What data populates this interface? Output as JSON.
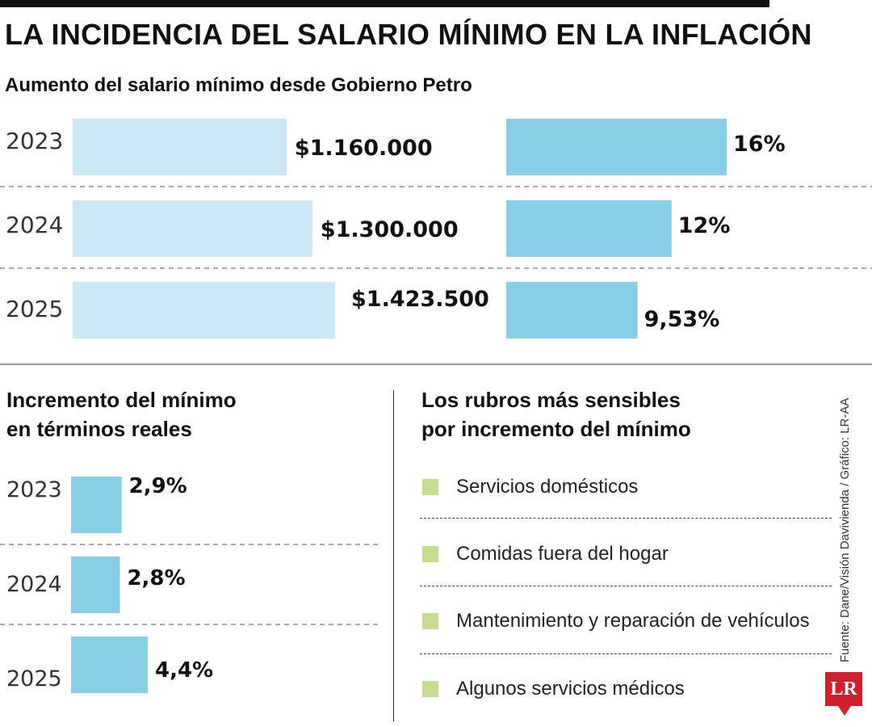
{
  "title": "LA INCIDENCIA DEL SALARIO MÍNIMO EN LA INFLACIÓN",
  "colors": {
    "light_bar": "#cce8f4",
    "bar": "#87cee6",
    "bullet": "#c5dc8c",
    "logo": "#d0202e"
  },
  "chart_data": [
    {
      "type": "bar",
      "title": "Aumento del salario mínimo desde Gobierno Petro",
      "categories": [
        "2023",
        "2024",
        "2025"
      ],
      "series": [
        {
          "values": [
            1160000,
            1300000,
            1423500
          ],
          "labels": [
            "$1.160.000",
            "$1.300.000",
            "$1.423.500"
          ],
          "color": "#cce8f4"
        },
        {
          "values": [
            16,
            12,
            9.53
          ],
          "labels": [
            "16%",
            "12%",
            "9,53%"
          ],
          "color": "#87cee6"
        }
      ],
      "grid": false
    },
    {
      "type": "bar",
      "title_lines": [
        "Incremento del mínimo",
        "en términos reales"
      ],
      "categories": [
        "2023",
        "2024",
        "2025"
      ],
      "values": [
        2.9,
        2.8,
        4.4
      ],
      "labels": [
        "2,9%",
        "2,8%",
        "4,4%"
      ],
      "color": "#87cee6",
      "grid": false
    }
  ],
  "rubros": {
    "title_lines": [
      "Los rubros más sensibles",
      "por incremento del mínimo"
    ],
    "items": [
      " Servicios domésticos",
      "Comidas fuera del hogar",
      "Mantenimiento y reparación de vehículos",
      "Algunos servicios médicos"
    ]
  },
  "source": "Fuente: Dane/Visión Daviviend​a / Gráfico: LR-AA",
  "logo": "LR"
}
